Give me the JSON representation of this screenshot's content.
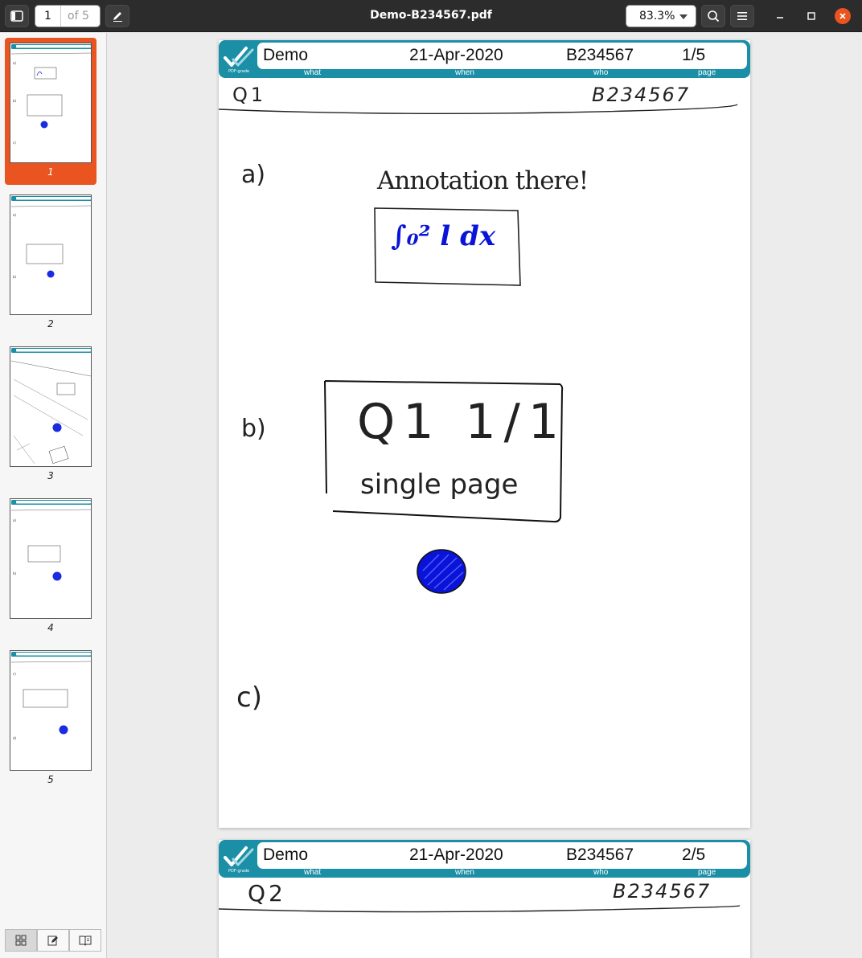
{
  "toolbar": {
    "current_page": "1",
    "page_count": "of 5",
    "title": "Demo-B234567.pdf",
    "zoom": "83.3%"
  },
  "sidebar": {
    "thumbnails": [
      {
        "label": "1"
      },
      {
        "label": "2"
      },
      {
        "label": "3"
      },
      {
        "label": "4"
      },
      {
        "label": "5"
      }
    ]
  },
  "pages": [
    {
      "header": {
        "what": "Demo",
        "when": "21-Apr-2020",
        "who": "B234567",
        "page": "1/5"
      },
      "labels": {
        "what": "what",
        "when": "when",
        "who": "who",
        "page": "page"
      },
      "question": "Q1",
      "student_id": "B234567",
      "part_a": "a)",
      "annotation": "Annotation there!",
      "formula": "∫₀² l dx",
      "part_b": "b)",
      "box_title": "Q1  1/1",
      "box_sub": "single page",
      "part_c": "c)"
    },
    {
      "header": {
        "what": "Demo",
        "when": "21-Apr-2020",
        "who": "B234567",
        "page": "2/5"
      },
      "labels": {
        "what": "what",
        "when": "when",
        "who": "who",
        "page": "page"
      },
      "question": "Q2",
      "student_id": "B234567"
    }
  ],
  "colors": {
    "brand": "#1b8fa6",
    "accent": "#e95420",
    "ink_blue": "#0a14d8"
  }
}
